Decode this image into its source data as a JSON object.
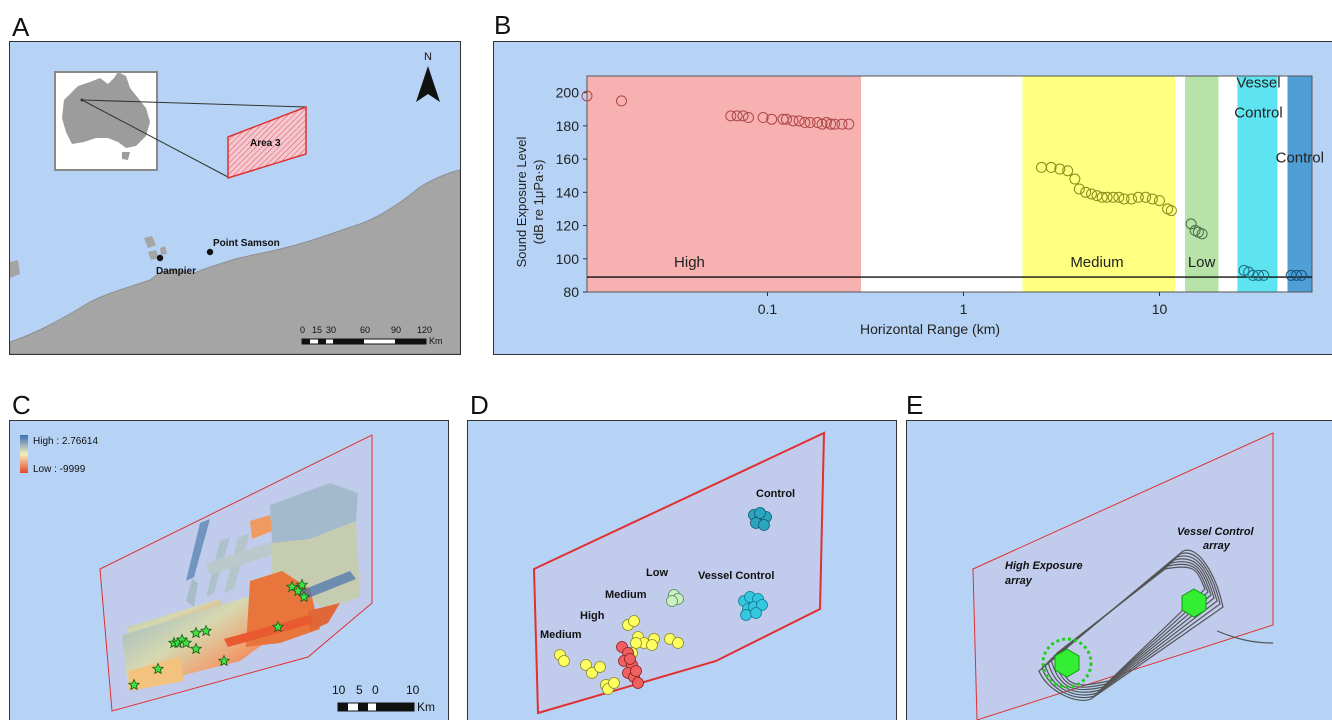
{
  "panels": {
    "a": "A",
    "b": "B",
    "c": "C",
    "d": "D",
    "e": "E"
  },
  "map_a": {
    "north_label": "N",
    "area_label": "Area 3",
    "places": [
      {
        "name": "Dampier"
      },
      {
        "name": "Point Samson"
      }
    ],
    "scalebar": {
      "ticks": [
        "0",
        "15",
        "30",
        "60",
        "90",
        "120"
      ],
      "unit": "Km"
    }
  },
  "chart_data": {
    "type": "scatter",
    "xlabel": "Horizontal Range (km)",
    "ylabel": "Sound Exposure Level",
    "ylabel2": "(dB re 1μPa·s)",
    "xscale": "log",
    "xlim": [
      0.012,
      60
    ],
    "ylim": [
      80,
      210
    ],
    "x_ticks": [
      {
        "value": 0.1,
        "label": "0.1"
      },
      {
        "value": 1,
        "label": "1"
      },
      {
        "value": 10,
        "label": "10"
      }
    ],
    "y_ticks": [
      80,
      100,
      120,
      140,
      160,
      180,
      200
    ],
    "reference_line_y": 89,
    "zones": [
      {
        "label": "High",
        "label2": "",
        "from": 0.012,
        "to": 0.3,
        "color": "#f7b1b1"
      },
      {
        "label": "Medium",
        "label2": "",
        "from": 2,
        "to": 12,
        "color": "#ffff80"
      },
      {
        "label": "Low",
        "label2": "",
        "from": 13.5,
        "to": 20,
        "color": "#b7e3a8"
      },
      {
        "label": "Vessel",
        "label2": "Control",
        "from": 25,
        "to": 40,
        "color": "#5ee3f1"
      },
      {
        "label": "Control",
        "label2": "",
        "from": 45,
        "to": 60,
        "color": "#4f9ed6"
      }
    ],
    "series": [
      {
        "color": "#b04848",
        "points": [
          [
            0.012,
            198
          ],
          [
            0.018,
            195
          ],
          [
            0.065,
            186
          ],
          [
            0.07,
            186
          ],
          [
            0.075,
            186
          ],
          [
            0.08,
            185
          ],
          [
            0.095,
            185
          ],
          [
            0.105,
            184
          ],
          [
            0.12,
            184
          ],
          [
            0.125,
            184
          ],
          [
            0.135,
            183
          ],
          [
            0.145,
            183
          ],
          [
            0.155,
            182
          ],
          [
            0.165,
            182
          ],
          [
            0.18,
            182
          ],
          [
            0.19,
            181
          ],
          [
            0.2,
            182
          ],
          [
            0.21,
            181
          ],
          [
            0.22,
            181
          ],
          [
            0.24,
            181
          ],
          [
            0.26,
            181
          ]
        ]
      },
      {
        "color": "#8a8a1c",
        "points": [
          [
            2.5,
            155
          ],
          [
            2.8,
            155
          ],
          [
            3.1,
            154
          ],
          [
            3.4,
            153
          ],
          [
            3.7,
            148
          ],
          [
            3.9,
            142
          ],
          [
            4.2,
            140
          ],
          [
            4.5,
            139
          ],
          [
            4.8,
            138
          ],
          [
            5.1,
            137
          ],
          [
            5.4,
            137
          ],
          [
            5.8,
            137
          ],
          [
            6.2,
            137
          ],
          [
            6.6,
            136
          ],
          [
            7.2,
            136
          ],
          [
            7.8,
            137
          ],
          [
            8.5,
            137
          ],
          [
            9.2,
            136
          ],
          [
            10,
            135
          ],
          [
            11,
            130
          ],
          [
            11.5,
            129
          ]
        ]
      },
      {
        "color": "#4a6f4a",
        "points": [
          [
            14.5,
            121
          ],
          [
            15.2,
            117
          ],
          [
            15.8,
            116
          ],
          [
            16.5,
            115
          ]
        ]
      },
      {
        "color": "#1d6f87",
        "points": [
          [
            27,
            93
          ],
          [
            28.5,
            92
          ],
          [
            30,
            90
          ],
          [
            32,
            90
          ],
          [
            34,
            90
          ]
        ]
      },
      {
        "color": "#17557c",
        "points": [
          [
            47,
            90
          ],
          [
            50,
            90
          ],
          [
            53,
            90
          ]
        ]
      }
    ]
  },
  "map_c": {
    "legend_high": "High : 2.76614",
    "legend_low": "Low : -9999",
    "scalebar": {
      "ticks": [
        "10",
        "5",
        "0",
        "10"
      ],
      "unit": "Km"
    }
  },
  "map_d": {
    "labels": [
      {
        "text": "Control"
      },
      {
        "text": "Vessel Control"
      },
      {
        "text": "Low"
      },
      {
        "text": "Medium"
      },
      {
        "text": "High"
      },
      {
        "text": "Medium"
      }
    ]
  },
  "map_e": {
    "label_high_1": "High Exposure",
    "label_high_2": "array",
    "label_vessel_1": "Vessel Control",
    "label_vessel_2": "array"
  }
}
